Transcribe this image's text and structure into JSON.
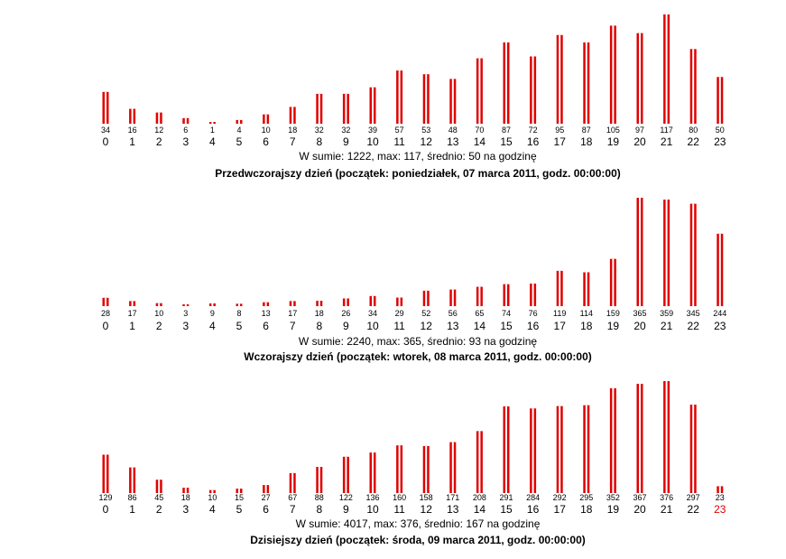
{
  "chart_data": [
    {
      "type": "bar",
      "categories": [
        "0",
        "1",
        "2",
        "3",
        "4",
        "5",
        "6",
        "7",
        "8",
        "9",
        "10",
        "11",
        "12",
        "13",
        "14",
        "15",
        "16",
        "17",
        "18",
        "19",
        "20",
        "21",
        "22",
        "23"
      ],
      "values": [
        34,
        16,
        12,
        6,
        1,
        4,
        10,
        18,
        32,
        32,
        39,
        57,
        53,
        48,
        70,
        87,
        72,
        95,
        87,
        105,
        97,
        117,
        80,
        50
      ],
      "ylim": [
        0,
        117
      ],
      "summary": "W sumie: 1222, max: 117, średnio: 50 na godzinę",
      "caption": "Przedwczorajszy dzień (początek: poniedziałek, 07 marca 2011, godz. 00:00:00)",
      "highlight_hour": null,
      "colors": {
        "bar": "#e00000",
        "bar_center": "#ffffff",
        "current_hour": "#e00000"
      }
    },
    {
      "type": "bar",
      "categories": [
        "0",
        "1",
        "2",
        "3",
        "4",
        "5",
        "6",
        "7",
        "8",
        "9",
        "10",
        "11",
        "12",
        "13",
        "14",
        "15",
        "16",
        "17",
        "18",
        "19",
        "20",
        "21",
        "22",
        "23"
      ],
      "values": [
        28,
        17,
        10,
        3,
        9,
        8,
        13,
        17,
        18,
        26,
        34,
        29,
        52,
        56,
        65,
        74,
        76,
        119,
        114,
        159,
        365,
        359,
        345,
        244
      ],
      "ylim": [
        0,
        365
      ],
      "summary": "W sumie: 2240, max: 365, średnio: 93 na godzinę",
      "caption": "Wczorajszy dzień (początek: wtorek, 08 marca 2011, godz. 00:00:00)",
      "highlight_hour": null,
      "colors": {
        "bar": "#e00000",
        "bar_center": "#ffffff",
        "current_hour": "#e00000"
      }
    },
    {
      "type": "bar",
      "categories": [
        "0",
        "1",
        "2",
        "3",
        "4",
        "5",
        "6",
        "7",
        "8",
        "9",
        "10",
        "11",
        "12",
        "13",
        "14",
        "15",
        "16",
        "17",
        "18",
        "19",
        "20",
        "21",
        "22",
        "23"
      ],
      "values": [
        129,
        86,
        45,
        18,
        10,
        15,
        27,
        67,
        88,
        122,
        136,
        160,
        158,
        171,
        208,
        291,
        284,
        292,
        295,
        352,
        367,
        376,
        297,
        23
      ],
      "ylim": [
        0,
        376
      ],
      "summary": "W sumie: 4017, max: 376, średnio: 167 na godzinę",
      "caption": "Dzisiejszy dzień (początek: środa, 09 marca 2011, godz. 00:00:00)",
      "highlight_hour": 23,
      "colors": {
        "bar": "#e00000",
        "bar_center": "#ffffff",
        "current_hour": "#e00000"
      }
    }
  ]
}
